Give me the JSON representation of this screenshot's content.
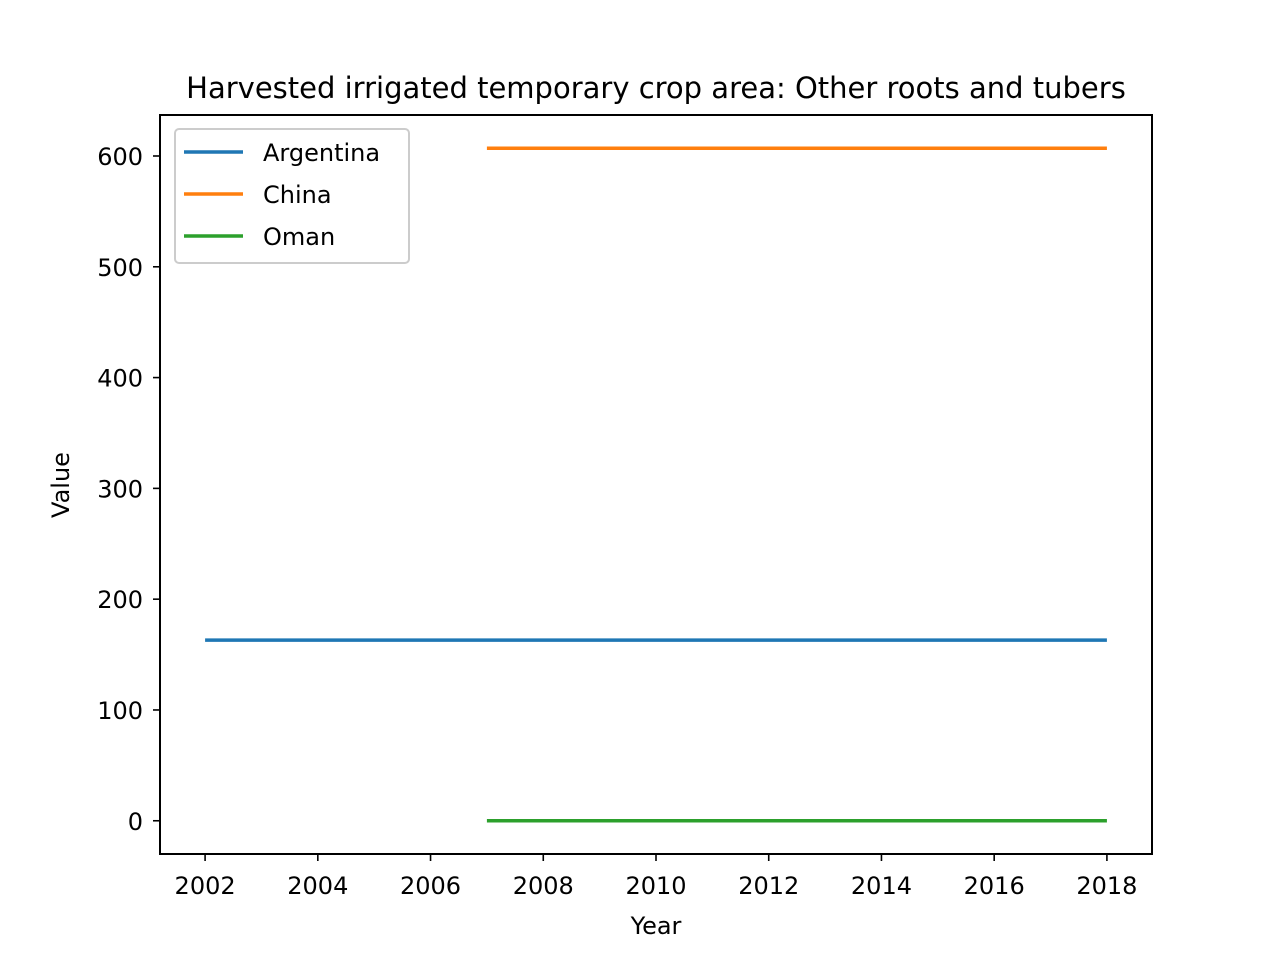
{
  "chart_data": {
    "type": "line",
    "title": "Harvested irrigated temporary crop area: Other roots and tubers",
    "xlabel": "Year",
    "ylabel": "Value",
    "xlim": [
      2001.2,
      2018.8
    ],
    "ylim": [
      -30,
      637
    ],
    "xticks": [
      2002,
      2004,
      2006,
      2008,
      2010,
      2012,
      2014,
      2016,
      2018
    ],
    "yticks": [
      0,
      100,
      200,
      300,
      400,
      500,
      600
    ],
    "grid": false,
    "legend_position": "upper left",
    "series": [
      {
        "name": "Argentina",
        "color": "#1f77b4",
        "x": [
          2002,
          2018
        ],
        "y": [
          163,
          163
        ]
      },
      {
        "name": "China",
        "color": "#ff7f0e",
        "x": [
          2007,
          2018
        ],
        "y": [
          607,
          607
        ]
      },
      {
        "name": "Oman",
        "color": "#2ca02c",
        "x": [
          2007,
          2018
        ],
        "y": [
          0,
          0
        ]
      }
    ]
  }
}
